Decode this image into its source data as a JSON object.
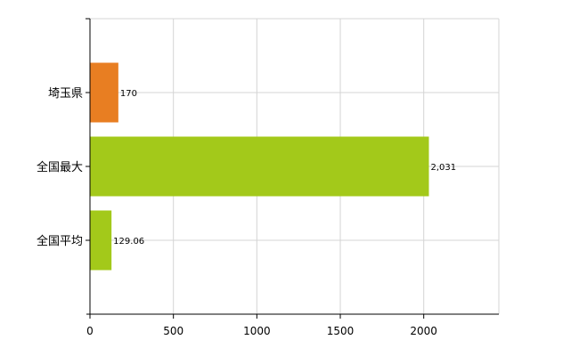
{
  "chart_data": {
    "type": "bar",
    "orientation": "horizontal",
    "categories": [
      "埼玉県",
      "全国最大",
      "全国平均"
    ],
    "values": [
      170,
      2031,
      129.06
    ],
    "data_labels": [
      "170",
      "2,031",
      "129.06"
    ],
    "colors": [
      "#e87e22",
      "#a3c91a",
      "#a3c91a"
    ],
    "xlim": [
      0,
      2450
    ],
    "xticks": [
      0,
      500,
      1000,
      1500,
      2000
    ],
    "xtick_labels": [
      "0",
      "500",
      "1000",
      "1500",
      "2000"
    ],
    "grid": true,
    "title": "",
    "xlabel": "",
    "ylabel": ""
  }
}
